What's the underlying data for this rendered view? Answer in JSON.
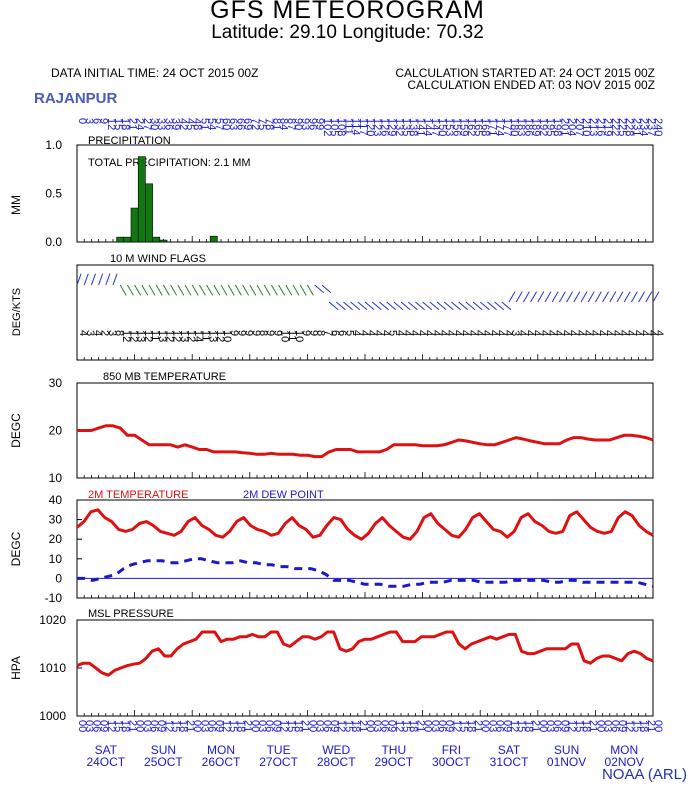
{
  "header": {
    "title": "GFS METEOROGRAM",
    "subtitle": "Latitude: 29.10 Longitude:  70.32",
    "init_time": "DATA INITIAL TIME: 24 OCT 2015 00Z",
    "calc_start": "CALCULATION STARTED AT: 24 OCT 2015 00Z",
    "calc_end": "CALCULATION ENDED AT: 03 NOV 2015 00Z",
    "station": "RAJANPUR",
    "credit": "NOAA (ARL)"
  },
  "colors": {
    "temp": "#dd1111",
    "dew": "#1a1acc",
    "precip": "#117711",
    "wind_green": "#228822",
    "wind_blue": "#2233cc",
    "axis_text": "#1a1acc"
  },
  "chart_data": [
    {
      "type": "bar",
      "title": "PRECIPITATION",
      "annotation": "TOTAL PRECIPITATION:   2.1 MM",
      "ylabel": "MM",
      "ylim": [
        0,
        1.0
      ],
      "yticks": [
        "0.0",
        "0.5",
        "1.0"
      ],
      "x_hours_labels": [
        "0",
        "3",
        "6",
        "9",
        "12",
        "15",
        "18",
        "21",
        "24",
        "27",
        "30",
        "33",
        "36",
        "39",
        "42",
        "45",
        "48",
        "51",
        "54",
        "57",
        "60",
        "63",
        "66",
        "69",
        "72",
        "75",
        "78",
        "81",
        "84",
        "87",
        "90",
        "93",
        "96",
        "99",
        "102",
        "105",
        "108",
        "111",
        "114",
        "117",
        "120",
        "123",
        "126",
        "129",
        "132",
        "135",
        "138",
        "141",
        "144",
        "147",
        "150",
        "153",
        "156",
        "159",
        "162",
        "165",
        "168",
        "171",
        "174",
        "177",
        "180",
        "183",
        "186",
        "189",
        "192",
        "195",
        "198",
        "201",
        "204",
        "207",
        "210",
        "213",
        "216",
        "219",
        "222",
        "225",
        "228",
        "231",
        "234",
        "237",
        "240"
      ],
      "hours": [
        18,
        21,
        24,
        27,
        30,
        33,
        36,
        57
      ],
      "values": [
        0.05,
        0.05,
        0.35,
        0.88,
        0.6,
        0.05,
        0.02,
        0.06
      ]
    },
    {
      "type": "wind",
      "title": "10 M  WIND FLAGS",
      "ylabel": "DEG/KTS",
      "speed_labels": [
        "4",
        "3",
        "4",
        "2",
        "3",
        "8",
        "12",
        "12",
        "13",
        "12",
        "11",
        "13",
        "12",
        "12",
        "13",
        "12",
        "14",
        "11",
        "13",
        "12",
        "10",
        "9",
        "9",
        "9",
        "9",
        "8",
        "9",
        "9",
        "10",
        "11",
        "10",
        "9",
        "9",
        "8",
        "7",
        "6",
        "6",
        "5",
        "4",
        "4",
        "4",
        "4",
        "4",
        "5",
        "4",
        "4",
        "4",
        "4",
        "4",
        "4",
        "4",
        "4",
        "4",
        "4",
        "4",
        "4",
        "4",
        "4",
        "4",
        "4",
        "3",
        "4",
        "4",
        "4",
        "4",
        "4",
        "4",
        "4",
        "4",
        "4",
        "4",
        "4",
        "4",
        "4",
        "4",
        "4",
        "4",
        "4",
        "4",
        "4",
        "4"
      ]
    },
    {
      "type": "line",
      "title": "850 MB  TEMPERATURE",
      "ylabel": "DEGC",
      "ylim": [
        10,
        30
      ],
      "yticks": [
        "10",
        "20",
        "30"
      ],
      "series": [
        {
          "values": [
            20,
            20,
            20,
            20.5,
            21,
            21,
            20.5,
            19,
            19,
            18,
            17,
            17,
            17,
            17,
            16.5,
            17,
            16.5,
            16,
            16,
            15.5,
            15.5,
            15.5,
            15.5,
            15.3,
            15.2,
            15,
            15,
            15.2,
            15,
            15,
            15,
            14.8,
            14.8,
            14.5,
            14.5,
            15.5,
            16,
            16,
            16,
            15.5,
            15.5,
            15.5,
            15.5,
            16,
            17,
            17,
            17,
            17,
            16.8,
            16.8,
            16.8,
            17,
            17.5,
            18,
            17.8,
            17.5,
            17.2,
            17,
            17,
            17.5,
            18,
            18.5,
            18.2,
            17.8,
            17.5,
            17.2,
            17.2,
            17.2,
            18,
            18.5,
            18.5,
            18.2,
            18,
            18,
            18,
            18.5,
            19,
            19,
            18.8,
            18.5,
            18
          ]
        }
      ]
    },
    {
      "type": "line",
      "ylabel": "DEGC",
      "ylim": [
        -10,
        40
      ],
      "yticks": [
        "-10",
        "0",
        "10",
        "20",
        "30",
        "40"
      ],
      "series": [
        {
          "name": "2M TEMPERATURE",
          "values": [
            26,
            29,
            34,
            35,
            31,
            29,
            25,
            24,
            25,
            28,
            29,
            27,
            24,
            23,
            22,
            24,
            29,
            31,
            27,
            25,
            22,
            21,
            24,
            29,
            31,
            27,
            25,
            24,
            22,
            23,
            28,
            31,
            27,
            25,
            21,
            22,
            27,
            31,
            30,
            25,
            22,
            20,
            23,
            28,
            31,
            27,
            24,
            21,
            20,
            24,
            31,
            33,
            28,
            25,
            22,
            21,
            25,
            31,
            33,
            29,
            25,
            24,
            21,
            24,
            31,
            33,
            29,
            27,
            24,
            23,
            24,
            32,
            34,
            30,
            26,
            24,
            23,
            24,
            31,
            34,
            32,
            27,
            24,
            22
          ]
        },
        {
          "name": "2M  DEW POINT",
          "values": [
            0,
            0,
            -1,
            0,
            1,
            2,
            5,
            7,
            8,
            9,
            9,
            9,
            8,
            8,
            9,
            10,
            10,
            9,
            8,
            8,
            8,
            9,
            8,
            8,
            7,
            7,
            6,
            6,
            5,
            5,
            5,
            4,
            2,
            -1,
            -1,
            -1,
            -2,
            -3,
            -3,
            -3,
            -4,
            -4,
            -4,
            -3,
            -3,
            -2,
            -2,
            -2,
            -1,
            -1,
            -1,
            -1,
            -2,
            -2,
            -2,
            -2,
            -1,
            -1,
            -1,
            -1,
            -1,
            -2,
            -2,
            -1,
            -1,
            -2,
            -2,
            -2,
            -2,
            -2,
            -2,
            -2,
            -2,
            -3,
            -4
          ]
        }
      ]
    },
    {
      "type": "line",
      "title": "MSL PRESSURE",
      "ylabel": "HPA",
      "ylim": [
        1000,
        1020
      ],
      "yticks": [
        "1000",
        "1010",
        "1020"
      ],
      "series": [
        {
          "values": [
            1010.5,
            1011,
            1011,
            1010,
            1009,
            1008.5,
            1009.5,
            1010,
            1010.5,
            1010.8,
            1011,
            1012,
            1013.5,
            1014,
            1012.5,
            1012.5,
            1014,
            1015,
            1015.5,
            1016,
            1017.5,
            1017.5,
            1017.5,
            1015.5,
            1016,
            1016,
            1016.5,
            1016.5,
            1017,
            1016.5,
            1016.5,
            1017.5,
            1017.5,
            1015,
            1014.5,
            1015.5,
            1016.5,
            1016.5,
            1016,
            1016.5,
            1017.5,
            1017.5,
            1014,
            1013.5,
            1014,
            1015.5,
            1016,
            1016,
            1016.5,
            1017,
            1017.5,
            1017.5,
            1015.5,
            1015.5,
            1015.5,
            1016.5,
            1016.5,
            1016.5,
            1017,
            1017.5,
            1017.5,
            1015,
            1014,
            1015,
            1015.5,
            1016,
            1016.5,
            1016,
            1016.5,
            1017,
            1017,
            1013.5,
            1013,
            1013,
            1013.5,
            1014,
            1014,
            1014,
            1014,
            1015,
            1015,
            1011.5,
            1011,
            1012,
            1012.5,
            1012.5,
            1012,
            1011.5,
            1013,
            1013.5,
            1013,
            1012,
            1011.5
          ]
        }
      ]
    }
  ],
  "days": [
    {
      "dow": "SAT",
      "date": "24OCT"
    },
    {
      "dow": "SUN",
      "date": "25OCT"
    },
    {
      "dow": "MON",
      "date": "26OCT"
    },
    {
      "dow": "TUE",
      "date": "27OCT"
    },
    {
      "dow": "WED",
      "date": "28OCT"
    },
    {
      "dow": "THU",
      "date": "29OCT"
    },
    {
      "dow": "FRI",
      "date": "30OCT"
    },
    {
      "dow": "SAT",
      "date": "31OCT"
    },
    {
      "dow": "SUN",
      "date": "01NOV"
    },
    {
      "dow": "MON",
      "date": "02NOV"
    }
  ],
  "hour_labels": [
    "00",
    "03",
    "06",
    "09",
    "12",
    "15",
    "18",
    "21"
  ]
}
